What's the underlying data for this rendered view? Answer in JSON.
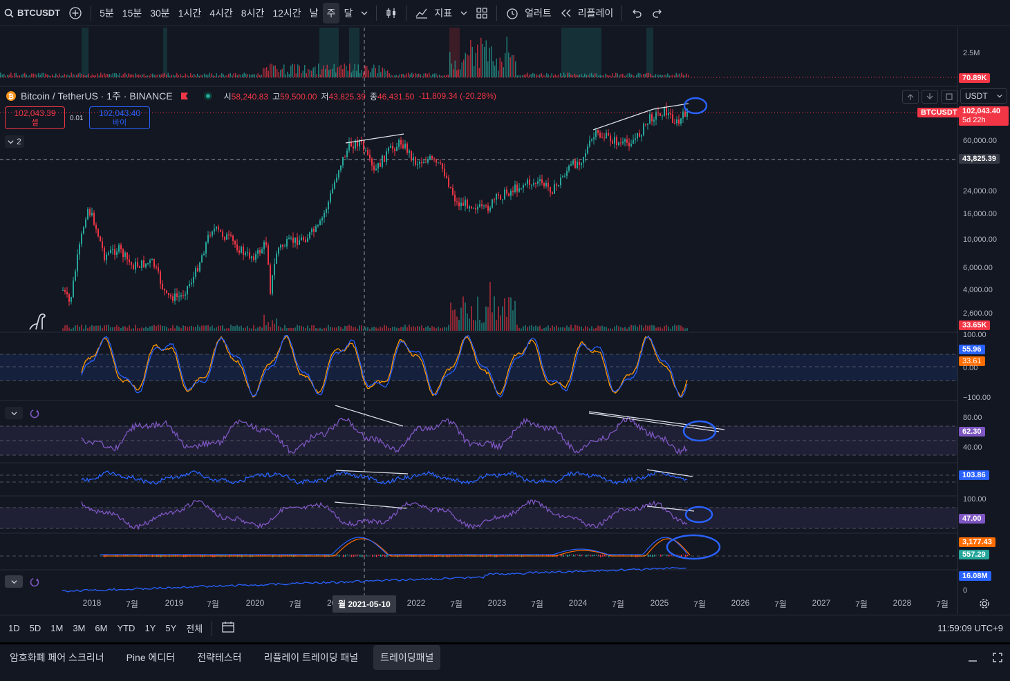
{
  "toolbar": {
    "symbol": "BTCUSDT",
    "intervals": [
      "5분",
      "15분",
      "30분",
      "1시간",
      "4시간",
      "8시간",
      "12시간",
      "날",
      "주",
      "달"
    ],
    "active_interval": "주",
    "indicators_label": "지표",
    "alert_label": "얼러트",
    "replay_label": "리플레이"
  },
  "legend": {
    "title": "Bitcoin / TetherUS · 1주 · BINANCE",
    "open_label": "시",
    "open": "58,240.83",
    "high_label": "고",
    "high": "59,500.00",
    "low_label": "저",
    "low": "43,825.39",
    "close_label": "종",
    "close": "46,431.50",
    "change": "-11,809.34 (-20.28%)",
    "indicator_count": "2"
  },
  "trade": {
    "sell_price": "102,043.39",
    "sell_label": "셀",
    "spread": "0.01",
    "buy_price": "102,043.40",
    "buy_label": "바이",
    "currency": "USDT"
  },
  "price_scale": {
    "volume_top_label": "2.5M",
    "volume_top_tag": "70.89K",
    "symbol_tag": "BTCUSDT",
    "last_price": "102,043.40",
    "countdown": "5d 22h",
    "crosshair_price": "43,825.39",
    "price_ticks": [
      "60,000.00",
      "24,000.00",
      "16,000.00",
      "10,000.00",
      "6,000.00",
      "4,000.00",
      "2,600.00"
    ],
    "volume_tag": "33.65K",
    "stoch_ticks": [
      "100.00",
      "0.00",
      "−100.00"
    ],
    "stoch_k": "55.96",
    "stoch_d": "33.61",
    "rsi_ticks": [
      "80.00",
      "40.00"
    ],
    "rsi_value": "62.30",
    "cci_value": "103.86",
    "osc3_tick": "100.00",
    "osc3_value": "47.00",
    "macd_value": "3,177.43",
    "macd_signal": "557.29",
    "obv_value": "16.08M",
    "obv_zero": "0"
  },
  "xaxis": {
    "labels": [
      "2018",
      "7월",
      "2019",
      "7월",
      "2020",
      "7월",
      "2022",
      "7월",
      "2023",
      "7월",
      "2024",
      "7월",
      "2025",
      "7월",
      "2026",
      "7월",
      "2027",
      "7월",
      "2028",
      "7월"
    ],
    "crosshair_partial": "20",
    "crosshair_date": "월 2021-05-10"
  },
  "bottombar": {
    "ranges": [
      "1D",
      "5D",
      "1M",
      "3M",
      "6M",
      "YTD",
      "1Y",
      "5Y",
      "전체"
    ],
    "clock": "11:59:09 UTC+9"
  },
  "tabs": [
    "암호화폐 페어 스크리너",
    "Pine 에디터",
    "전략테스터",
    "리플레이 트레이딩 패널",
    "트레이딩패널"
  ],
  "active_tab": "트레이딩패널",
  "colors": {
    "up": "#26a69a",
    "down": "#f23645",
    "accent": "#2962ff",
    "rsi": "#7e57c2",
    "background": "#131722"
  }
}
